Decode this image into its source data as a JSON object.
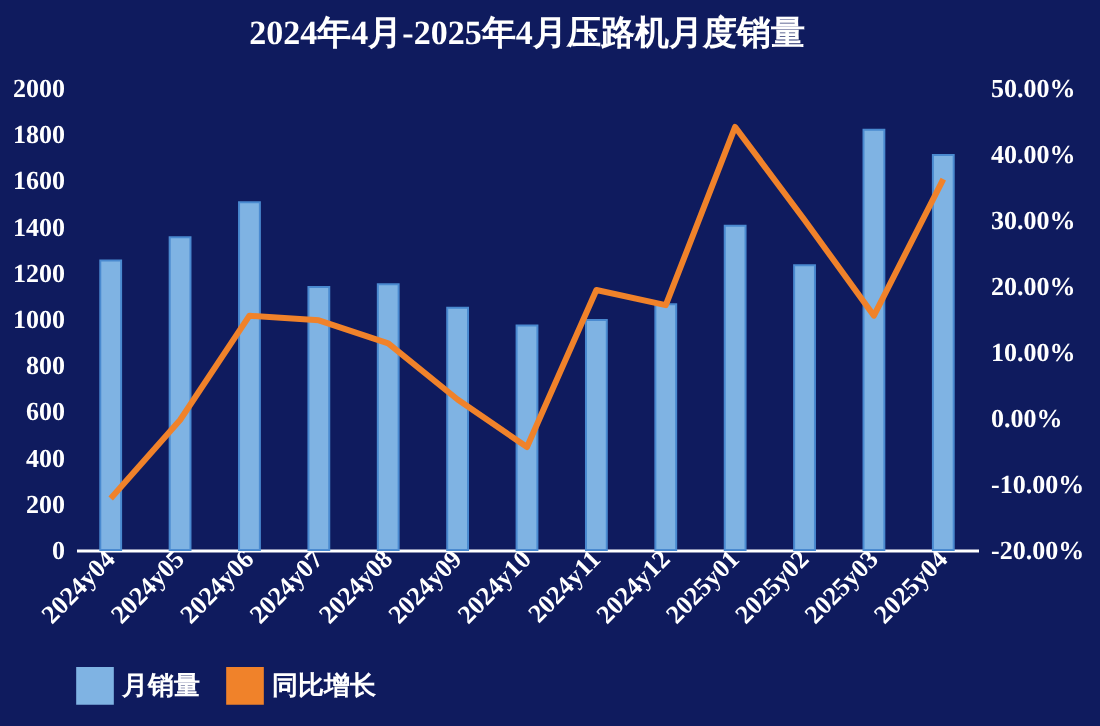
{
  "chart_data": {
    "type": "bar",
    "title": "2024年4月-2025年4月压路机月度销量",
    "categories": [
      "2024y04",
      "2024y05",
      "2024y06",
      "2024y07",
      "2024y08",
      "2024y09",
      "2024y10",
      "2024y11",
      "2024y12",
      "2025y01",
      "2025y02",
      "2025y03",
      "2025y04"
    ],
    "series": [
      {
        "name": "月销量",
        "color": "#7fb3e3",
        "values": [
          1253,
          1354,
          1505,
          1138,
          1150,
          1049,
          972,
          996,
          1064,
          1404,
          1233,
          1819,
          1710
        ]
      },
      {
        "name": "同比增长",
        "type": "line",
        "axis": "y2",
        "color": "#f0822a",
        "values": [
          -12.2,
          -0.3,
          15.5,
          14.8,
          11.3,
          2.8,
          -4.4,
          19.4,
          17.1,
          44.1,
          30,
          15.5,
          36.2
        ]
      }
    ],
    "ylim": [
      0,
      2000
    ],
    "yticks": [
      0,
      200,
      400,
      600,
      800,
      1000,
      1200,
      1400,
      1600,
      1800,
      2000
    ],
    "y2lim": [
      -20,
      50
    ],
    "y2ticks": [
      {
        "value": -20,
        "label": "-20.00%"
      },
      {
        "value": -10,
        "label": "-10.00%"
      },
      {
        "value": 0,
        "label": "0.00%"
      },
      {
        "value": 10,
        "label": "10.00%"
      },
      {
        "value": 20,
        "label": "20.00%"
      },
      {
        "value": 30,
        "label": "30.00%"
      },
      {
        "value": 40,
        "label": "40.00%"
      },
      {
        "value": 50,
        "label": "50.00%"
      }
    ],
    "legend": "bottom",
    "marker": "none",
    "line_style": "solid"
  }
}
